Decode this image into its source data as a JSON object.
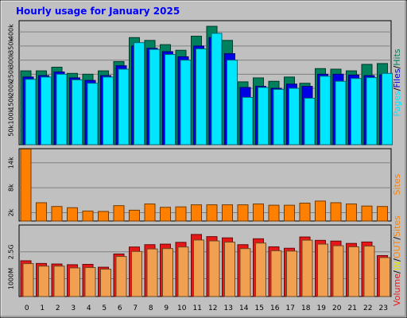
{
  "title": "Hourly usage for January 2025",
  "colors": {
    "background": "#c0c0c0",
    "plot_bg": "#c0c0c0",
    "title": "#0000ff",
    "hits": "#00805c",
    "files": "#0000e6",
    "pages": "#00e6ff",
    "sites": "#ff8000",
    "volume": "#e61717",
    "kbin": "#f0a050"
  },
  "chart_data": [
    {
      "type": "bar",
      "title": "Hourly usage for January 2025",
      "categories": [
        "0",
        "1",
        "2",
        "3",
        "4",
        "5",
        "6",
        "7",
        "8",
        "9",
        "10",
        "11",
        "12",
        "13",
        "14",
        "15",
        "16",
        "17",
        "18",
        "19",
        "20",
        "21",
        "22",
        "23"
      ],
      "y_ticks": [
        "50k",
        "100k",
        "150k",
        "200k",
        "250k",
        "300k",
        "350k",
        "400k"
      ],
      "y_tick_values": [
        50000,
        100000,
        150000,
        200000,
        250000,
        300000,
        350000,
        400000
      ],
      "ylim": [
        0,
        440000
      ],
      "legend_labels": [
        "Pages",
        "/",
        "Files",
        "/",
        "Hits"
      ],
      "series": [
        {
          "name": "Hits",
          "values": [
            262000,
            262000,
            275000,
            253000,
            250000,
            262000,
            295000,
            380000,
            370000,
            355000,
            335000,
            385000,
            420000,
            370000,
            223000,
            237000,
            225000,
            240000,
            218000,
            270000,
            268000,
            262000,
            285000,
            288000
          ]
        },
        {
          "name": "Files",
          "values": [
            240000,
            245000,
            258000,
            237000,
            228000,
            245000,
            280000,
            350000,
            342000,
            330000,
            312000,
            350000,
            380000,
            323000,
            203000,
            207000,
            200000,
            215000,
            207000,
            250000,
            250000,
            247000,
            245000,
            248000
          ]
        },
        {
          "name": "Pages",
          "values": [
            232000,
            240000,
            250000,
            230000,
            218000,
            240000,
            268000,
            362000,
            338000,
            320000,
            300000,
            340000,
            395000,
            300000,
            168000,
            203000,
            196000,
            200000,
            165000,
            243000,
            225000,
            235000,
            238000,
            253000
          ]
        }
      ]
    },
    {
      "type": "bar",
      "categories": [
        "0",
        "1",
        "2",
        "3",
        "4",
        "5",
        "6",
        "7",
        "8",
        "9",
        "10",
        "11",
        "12",
        "13",
        "14",
        "15",
        "16",
        "17",
        "18",
        "19",
        "20",
        "21",
        "22",
        "23"
      ],
      "y_ticks": [
        "2k",
        "8k",
        "14k"
      ],
      "y_tick_values": [
        2000,
        8000,
        14000
      ],
      "ylim": [
        0,
        17400
      ],
      "legend_labels": [
        "Sites"
      ],
      "series": [
        {
          "name": "Sites",
          "values": [
            17300,
            4400,
            3500,
            3200,
            2400,
            2300,
            3700,
            2600,
            4100,
            3300,
            3400,
            3900,
            3900,
            3900,
            3900,
            4100,
            3800,
            3800,
            4300,
            4800,
            4400,
            4100,
            3600,
            3500
          ]
        }
      ]
    },
    {
      "type": "bar",
      "categories": [
        "0",
        "1",
        "2",
        "3",
        "4",
        "5",
        "6",
        "7",
        "8",
        "9",
        "10",
        "11",
        "12",
        "13",
        "14",
        "15",
        "16",
        "17",
        "18",
        "19",
        "20",
        "21",
        "22",
        "23"
      ],
      "y_ticks": [
        "1000M",
        "2.5G"
      ],
      "y_tick_values": [
        1000,
        2500
      ],
      "ylim": [
        0,
        4000
      ],
      "legend_labels": [
        "Volume",
        "/",
        "IN",
        "/",
        "OUT",
        "/",
        "Sites"
      ],
      "series": [
        {
          "name": "Volume",
          "values": [
            2000,
            1850,
            1820,
            1780,
            1800,
            1640,
            2380,
            2770,
            2900,
            2930,
            3030,
            3470,
            3350,
            3280,
            2900,
            3230,
            2780,
            2700,
            3330,
            3140,
            3100,
            2970,
            3050,
            2290
          ]
        },
        {
          "name": "IN",
          "values": [
            1840,
            1700,
            1700,
            1600,
            1620,
            1530,
            2240,
            2520,
            2660,
            2680,
            2770,
            3160,
            3110,
            3040,
            2680,
            2990,
            2560,
            2540,
            3150,
            2930,
            2840,
            2780,
            2820,
            2180
          ]
        }
      ]
    }
  ]
}
